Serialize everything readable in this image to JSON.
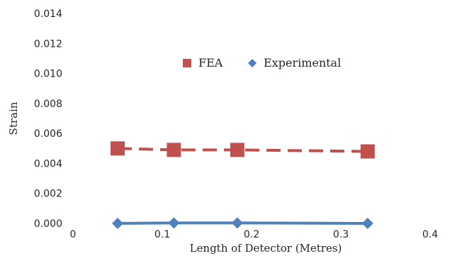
{
  "chart_data": {
    "type": "line",
    "title": "",
    "xlabel": "Length of Detector (Metres)",
    "ylabel": "Strain",
    "xlim": [
      0,
      0.4
    ],
    "ylim": [
      0,
      0.014
    ],
    "x_ticks": [
      "0",
      "0.1",
      "0.2",
      "0.3",
      "0.4"
    ],
    "y_ticks": [
      "0.000",
      "0.002",
      "0.004",
      "0.006",
      "0.008",
      "0.010",
      "0.012",
      "0.014"
    ],
    "grid": false,
    "legend_position": "top-center",
    "series": [
      {
        "name": "FEA",
        "color": "#c0504d",
        "marker": "square",
        "line_style": "dashed",
        "points": [
          {
            "x": 0.05,
            "y": 0.005
          },
          {
            "x": 0.113,
            "y": 0.0049
          },
          {
            "x": 0.184,
            "y": 0.0049
          },
          {
            "x": 0.33,
            "y": 0.0048
          }
        ]
      },
      {
        "name": "Experimental",
        "color": "#4f81bd",
        "marker": "diamond",
        "line_style": "solid",
        "points": [
          {
            "x": 0.05,
            "y": 0.0
          },
          {
            "x": 0.113,
            "y": 3e-05
          },
          {
            "x": 0.184,
            "y": 3e-05
          },
          {
            "x": 0.33,
            "y": 0.0
          }
        ]
      }
    ]
  }
}
